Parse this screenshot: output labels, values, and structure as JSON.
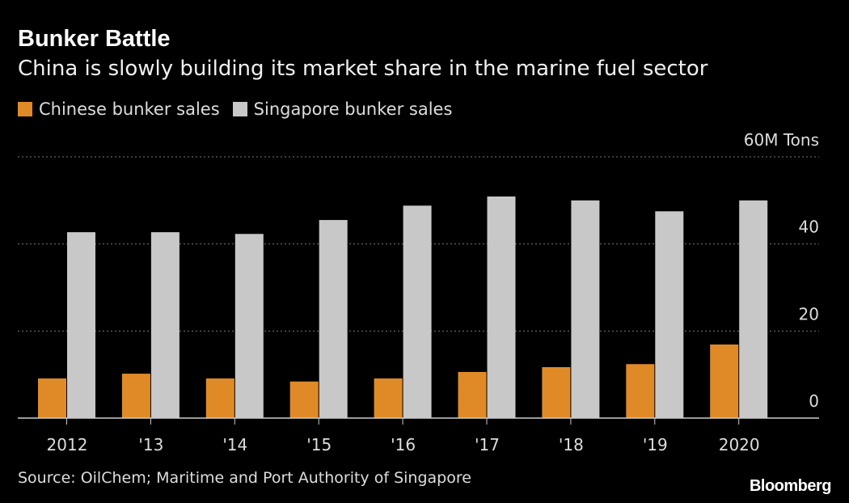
{
  "title": "Bunker Battle",
  "subtitle": "China is slowly building its market share in the marine fuel sector",
  "source": "Source: OilChem; Maritime and Port Authority of Singapore",
  "logo": "Bloomberg",
  "chart_data": {
    "type": "bar",
    "categories": [
      "2012",
      "'13",
      "'14",
      "'15",
      "'16",
      "'17",
      "'18",
      "'19",
      "2020"
    ],
    "series": [
      {
        "name": "Chinese bunker sales",
        "color": "#E08A27",
        "values": [
          9.1,
          10.2,
          9.1,
          8.4,
          9.1,
          10.6,
          11.7,
          12.4,
          16.9
        ]
      },
      {
        "name": "Singapore bunker sales",
        "color": "#C8C8C8",
        "values": [
          42.7,
          42.7,
          42.3,
          45.5,
          48.8,
          50.9,
          50.0,
          47.5,
          50.0
        ]
      }
    ],
    "ylim": [
      0,
      60
    ],
    "yticks": [
      0,
      20,
      40,
      60
    ],
    "ytick_labels": [
      "0",
      "20",
      "40",
      "60M Tons"
    ],
    "yaxis_side": "right",
    "grid": true,
    "legend_placement": "top-left"
  }
}
